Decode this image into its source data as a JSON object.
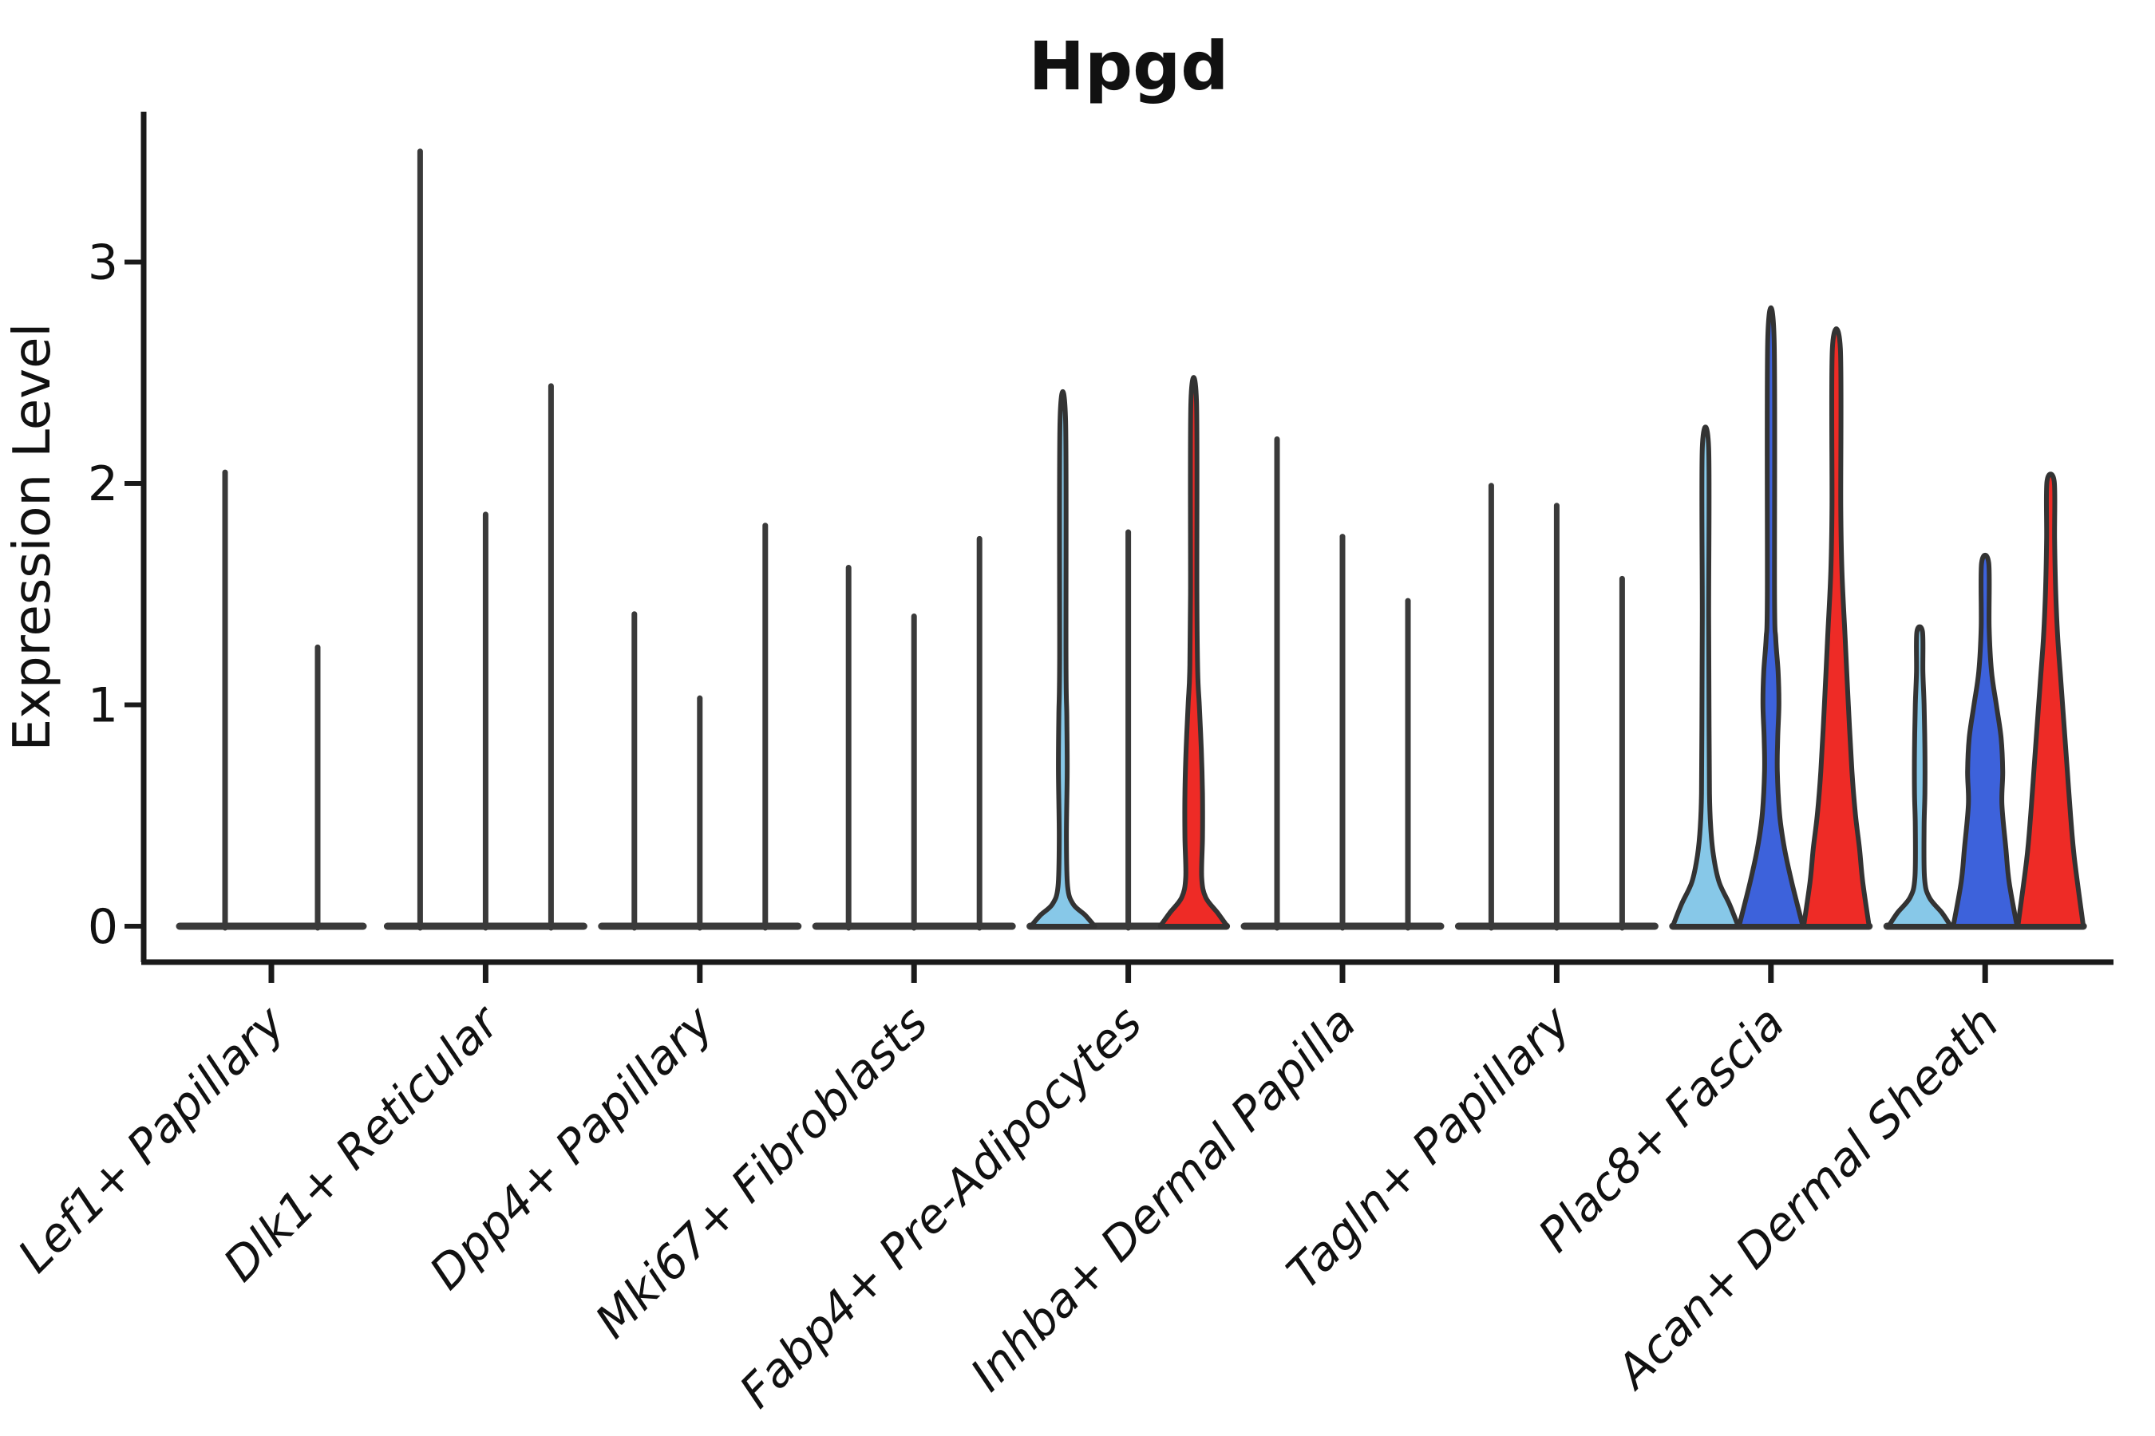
{
  "chart_data": {
    "type": "violin",
    "title": "Hpgd",
    "ylabel": "Expression Level",
    "ylim": [
      0,
      3.67
    ],
    "yticks": [
      0,
      1,
      2,
      3
    ],
    "grid": false,
    "legend": "none",
    "x_tick_rotation_deg": 45,
    "x_tick_style": "italic",
    "group_colors": [
      "#87C8E8",
      "#3D62DB",
      "#EE2B26"
    ],
    "violin_outline_color": "#333333",
    "collapsed_violin_color": "#3a3a3a",
    "axis_color": "#1a1a1a",
    "categories": [
      "Lef1+ Papillary",
      "Dlk1+ Reticular",
      "Dpp4+ Papillary",
      "Mki67+ Fibroblasts",
      "Fabp4+ Pre-Adipocytes",
      "Inhba+ Dermal Papilla",
      "Tagln+ Papillary",
      "Plac8+ Fascia",
      "Acan+ Dermal Sheath"
    ],
    "violins": [
      {
        "category_index": 0,
        "baseline_halfspan": 115,
        "items": [
          {
            "group": null,
            "offset": -58,
            "max": 2.05,
            "style": "collapsed"
          },
          {
            "group": null,
            "offset": 58,
            "max": 1.26,
            "style": "collapsed"
          }
        ]
      },
      {
        "category_index": 1,
        "baseline_halfspan": 123,
        "items": [
          {
            "group": 0,
            "offset": -82,
            "max": 3.5,
            "style": "collapsed"
          },
          {
            "group": 1,
            "offset": 0,
            "max": 1.86,
            "style": "collapsed"
          },
          {
            "group": 2,
            "offset": 82,
            "max": 2.44,
            "style": "collapsed"
          }
        ]
      },
      {
        "category_index": 2,
        "baseline_halfspan": 123,
        "items": [
          {
            "group": 0,
            "offset": -82,
            "max": 1.41,
            "style": "collapsed"
          },
          {
            "group": 1,
            "offset": 0,
            "max": 1.03,
            "style": "collapsed"
          },
          {
            "group": 2,
            "offset": 82,
            "max": 1.81,
            "style": "collapsed"
          }
        ]
      },
      {
        "category_index": 3,
        "baseline_halfspan": 123,
        "items": [
          {
            "group": 0,
            "offset": -82,
            "max": 1.62,
            "style": "collapsed"
          },
          {
            "group": 1,
            "offset": 0,
            "max": 1.4,
            "style": "collapsed"
          },
          {
            "group": 2,
            "offset": 82,
            "max": 1.75,
            "style": "collapsed"
          }
        ]
      },
      {
        "category_index": 4,
        "baseline_halfspan": 123,
        "items": [
          {
            "group": 0,
            "offset": -82,
            "max": 2.28,
            "style": "filled",
            "profile": [
              [
                0,
                40
              ],
              [
                0.05,
                28
              ],
              [
                0.1,
                13
              ],
              [
                0.18,
                6
              ],
              [
                0.4,
                4.5
              ],
              [
                0.7,
                5.5
              ],
              [
                0.95,
                5
              ],
              [
                1.2,
                4
              ],
              [
                2.28,
                3.5
              ]
            ]
          },
          {
            "group": 1,
            "offset": 0,
            "max": 1.78,
            "style": "collapsed"
          },
          {
            "group": 2,
            "offset": 82,
            "max": 2.37,
            "style": "filled",
            "profile": [
              [
                0,
                42
              ],
              [
                0.06,
                30
              ],
              [
                0.13,
                15
              ],
              [
                0.22,
                10
              ],
              [
                0.4,
                11
              ],
              [
                0.6,
                11
              ],
              [
                0.8,
                9.5
              ],
              [
                1.0,
                7
              ],
              [
                1.15,
                5
              ],
              [
                1.5,
                4
              ],
              [
                2.37,
                3.5
              ]
            ]
          }
        ]
      },
      {
        "category_index": 5,
        "baseline_halfspan": 123,
        "items": [
          {
            "group": 0,
            "offset": -82,
            "max": 2.2,
            "style": "collapsed"
          },
          {
            "group": 1,
            "offset": 0,
            "max": 1.76,
            "style": "collapsed"
          },
          {
            "group": 2,
            "offset": 82,
            "max": 1.47,
            "style": "collapsed"
          }
        ]
      },
      {
        "category_index": 6,
        "baseline_halfspan": 123,
        "items": [
          {
            "group": 0,
            "offset": -82,
            "max": 1.99,
            "style": "collapsed"
          },
          {
            "group": 1,
            "offset": 0,
            "max": 1.9,
            "style": "collapsed"
          },
          {
            "group": 2,
            "offset": 82,
            "max": 1.57,
            "style": "collapsed"
          }
        ]
      },
      {
        "category_index": 7,
        "baseline_halfspan": 123,
        "items": [
          {
            "group": 0,
            "offset": -82,
            "max": 2.16,
            "style": "filled",
            "profile": [
              [
                0,
                41
              ],
              [
                0.1,
                30
              ],
              [
                0.2,
                17
              ],
              [
                0.32,
                10
              ],
              [
                0.45,
                6.5
              ],
              [
                0.6,
                5
              ],
              [
                0.9,
                4.5
              ],
              [
                1.4,
                4
              ],
              [
                2.16,
                4
              ]
            ]
          },
          {
            "group": 1,
            "offset": 0,
            "max": 2.65,
            "style": "filled",
            "profile": [
              [
                0,
                40
              ],
              [
                0.2,
                26
              ],
              [
                0.35,
                17
              ],
              [
                0.5,
                11
              ],
              [
                0.7,
                8
              ],
              [
                0.85,
                8.5
              ],
              [
                1.0,
                10
              ],
              [
                1.15,
                9
              ],
              [
                1.3,
                6
              ],
              [
                1.5,
                4.5
              ],
              [
                2.65,
                4
              ]
            ]
          },
          {
            "group": 2,
            "offset": 82,
            "max": 2.61,
            "style": "filled",
            "profile": [
              [
                0,
                41
              ],
              [
                0.2,
                33
              ],
              [
                0.35,
                29
              ],
              [
                0.5,
                24
              ],
              [
                0.7,
                19.5
              ],
              [
                1.0,
                15
              ],
              [
                1.3,
                11
              ],
              [
                1.6,
                7
              ],
              [
                1.9,
                5.5
              ],
              [
                2.61,
                5
              ]
            ]
          }
        ]
      },
      {
        "category_index": 8,
        "baseline_halfspan": 123,
        "items": [
          {
            "group": 0,
            "offset": -82,
            "max": 1.33,
            "style": "filled",
            "profile": [
              [
                0,
                39
              ],
              [
                0.06,
                28
              ],
              [
                0.13,
                12
              ],
              [
                0.22,
                6
              ],
              [
                0.45,
                5.5
              ],
              [
                0.6,
                6.5
              ],
              [
                0.8,
                6.5
              ],
              [
                1.0,
                5.5
              ],
              [
                1.15,
                4
              ],
              [
                1.33,
                3.5
              ]
            ]
          },
          {
            "group": 1,
            "offset": 0,
            "max": 1.64,
            "style": "filled",
            "profile": [
              [
                0,
                40
              ],
              [
                0.2,
                30
              ],
              [
                0.35,
                26
              ],
              [
                0.55,
                21
              ],
              [
                0.7,
                22
              ],
              [
                0.85,
                20
              ],
              [
                1.0,
                14
              ],
              [
                1.15,
                8
              ],
              [
                1.35,
                5
              ],
              [
                1.64,
                4.5
              ]
            ]
          },
          {
            "group": 2,
            "offset": 82,
            "max": 2.01,
            "style": "filled",
            "profile": [
              [
                0,
                41
              ],
              [
                0.3,
                30
              ],
              [
                0.5,
                25
              ],
              [
                0.7,
                21
              ],
              [
                0.9,
                17
              ],
              [
                1.1,
                13
              ],
              [
                1.3,
                9
              ],
              [
                1.5,
                6.5
              ],
              [
                1.75,
                5
              ],
              [
                2.01,
                4.5
              ]
            ]
          }
        ]
      }
    ]
  }
}
